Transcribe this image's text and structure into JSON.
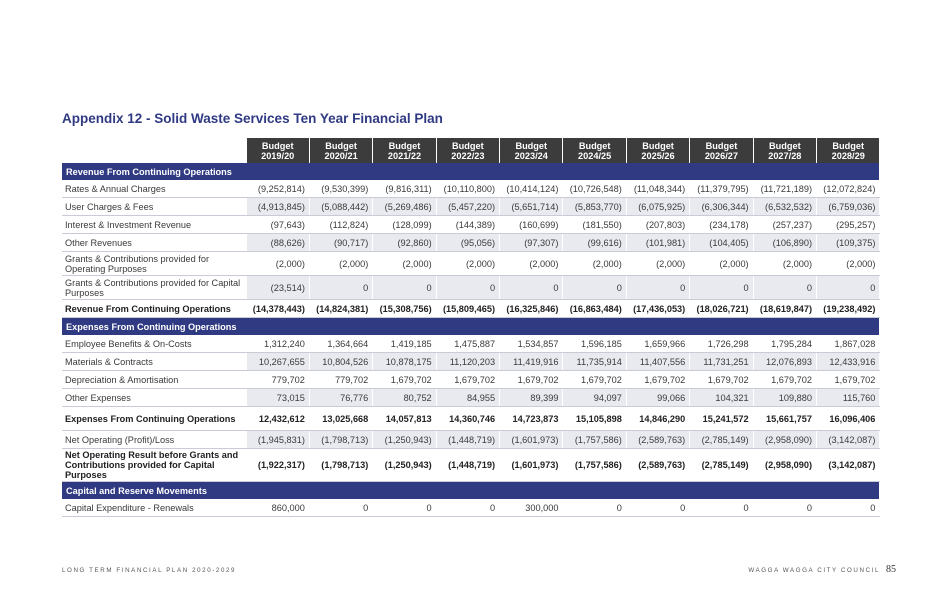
{
  "page": {
    "title": "Appendix 12 - Solid Waste Services Ten Year Financial Plan",
    "footer_left": "LONG TERM FINANCIAL PLAN 2020-2029",
    "footer_right": "WAGGA WAGGA CITY COUNCIL",
    "page_number": "85"
  },
  "table": {
    "columns": [
      "Budget\n2019/20",
      "Budget\n2020/21",
      "Budget\n2021/22",
      "Budget\n2022/23",
      "Budget\n2023/24",
      "Budget\n2024/25",
      "Budget\n2025/26",
      "Budget\n2026/27",
      "Budget\n2027/28",
      "Budget\n2028/29"
    ],
    "rows": [
      {
        "kind": "section",
        "label": "Revenue From Continuing Operations"
      },
      {
        "kind": "row",
        "label": "Rates & Annual Charges",
        "values": [
          "(9,252,814)",
          "(9,530,399)",
          "(9,816,311)",
          "(10,110,800)",
          "(10,414,124)",
          "(10,726,548)",
          "(11,048,344)",
          "(11,379,795)",
          "(11,721,189)",
          "(12,072,824)"
        ]
      },
      {
        "kind": "row",
        "label": "User Charges & Fees",
        "values": [
          "(4,913,845)",
          "(5,088,442)",
          "(5,269,486)",
          "(5,457,220)",
          "(5,651,714)",
          "(5,853,770)",
          "(6,075,925)",
          "(6,306,344)",
          "(6,532,532)",
          "(6,759,036)"
        ]
      },
      {
        "kind": "row",
        "label": "Interest & Investment Revenue",
        "values": [
          "(97,643)",
          "(112,824)",
          "(128,099)",
          "(144,389)",
          "(160,699)",
          "(181,550)",
          "(207,803)",
          "(234,178)",
          "(257,237)",
          "(295,257)"
        ]
      },
      {
        "kind": "row",
        "label": "Other Revenues",
        "values": [
          "(88,626)",
          "(90,717)",
          "(92,860)",
          "(95,056)",
          "(97,307)",
          "(99,616)",
          "(101,981)",
          "(104,405)",
          "(106,890)",
          "(109,375)"
        ]
      },
      {
        "kind": "row",
        "tall": true,
        "label": "Grants & Contributions provided for Operating Purposes",
        "values": [
          "(2,000)",
          "(2,000)",
          "(2,000)",
          "(2,000)",
          "(2,000)",
          "(2,000)",
          "(2,000)",
          "(2,000)",
          "(2,000)",
          "(2,000)"
        ]
      },
      {
        "kind": "row",
        "tall": true,
        "label": "Grants & Contributions provided for Capital Purposes",
        "values": [
          "(23,514)",
          "0",
          "0",
          "0",
          "0",
          "0",
          "0",
          "0",
          "0",
          "0"
        ]
      },
      {
        "kind": "row",
        "total": true,
        "label": "Revenue From Continuing Operations",
        "values": [
          "(14,378,443)",
          "(14,824,381)",
          "(15,308,756)",
          "(15,809,465)",
          "(16,325,846)",
          "(16,863,484)",
          "(17,436,053)",
          "(18,026,721)",
          "(18,619,847)",
          "(19,238,492)"
        ]
      },
      {
        "kind": "section",
        "label": "Expenses From Continuing Operations"
      },
      {
        "kind": "row",
        "label": "Employee Benefits & On-Costs",
        "values": [
          "1,312,240",
          "1,364,664",
          "1,419,185",
          "1,475,887",
          "1,534,857",
          "1,596,185",
          "1,659,966",
          "1,726,298",
          "1,795,284",
          "1,867,028"
        ]
      },
      {
        "kind": "row",
        "label": "Materials & Contracts",
        "values": [
          "10,267,655",
          "10,804,526",
          "10,878,175",
          "11,120,203",
          "11,419,916",
          "11,735,914",
          "11,407,556",
          "11,731,251",
          "12,076,893",
          "12,433,916"
        ]
      },
      {
        "kind": "row",
        "label": "Depreciation & Amortisation",
        "values": [
          "779,702",
          "779,702",
          "1,679,702",
          "1,679,702",
          "1,679,702",
          "1,679,702",
          "1,679,702",
          "1,679,702",
          "1,679,702",
          "1,679,702"
        ]
      },
      {
        "kind": "row",
        "label": "Other Expenses",
        "values": [
          "73,015",
          "76,776",
          "80,752",
          "84,955",
          "89,399",
          "94,097",
          "99,066",
          "104,321",
          "109,880",
          "115,760"
        ]
      },
      {
        "kind": "row",
        "tall": true,
        "total": true,
        "label": "Expenses From Continuing Operations",
        "values": [
          "12,432,612",
          "13,025,668",
          "14,057,813",
          "14,360,746",
          "14,723,873",
          "15,105,898",
          "14,846,290",
          "15,241,572",
          "15,661,757",
          "16,096,406"
        ]
      },
      {
        "kind": "row",
        "label": "Net Operating (Profit)/Loss",
        "values": [
          "(1,945,831)",
          "(1,798,713)",
          "(1,250,943)",
          "(1,448,719)",
          "(1,601,973)",
          "(1,757,586)",
          "(2,589,763)",
          "(2,785,149)",
          "(2,958,090)",
          "(3,142,087)"
        ]
      },
      {
        "kind": "row",
        "tall3": true,
        "total": true,
        "label": "Net Operating Result before Grants and Contributions provided for Capital Purposes",
        "values": [
          "(1,922,317)",
          "(1,798,713)",
          "(1,250,943)",
          "(1,448,719)",
          "(1,601,973)",
          "(1,757,586)",
          "(2,589,763)",
          "(2,785,149)",
          "(2,958,090)",
          "(3,142,087)"
        ]
      },
      {
        "kind": "section",
        "label": "Capital and Reserve Movements"
      },
      {
        "kind": "row",
        "label": "Capital Expenditure - Renewals",
        "values": [
          "860,000",
          "0",
          "0",
          "0",
          "300,000",
          "0",
          "0",
          "0",
          "0",
          "0"
        ]
      }
    ]
  }
}
